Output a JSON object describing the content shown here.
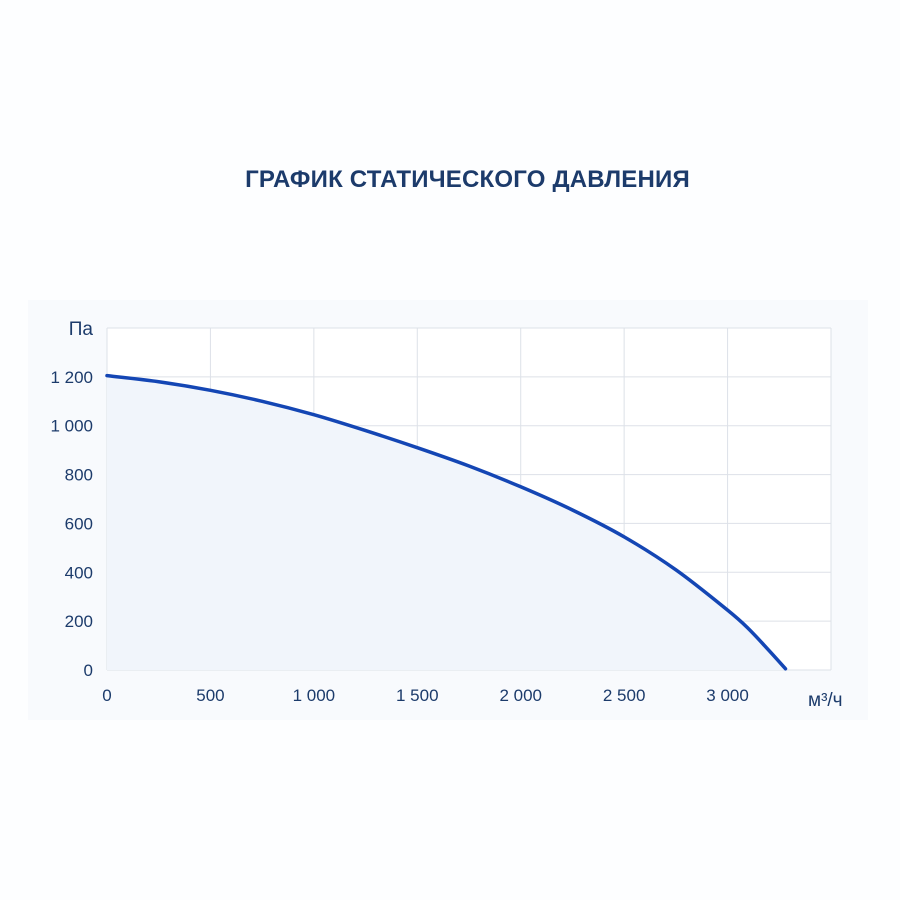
{
  "chart_data": {
    "type": "area",
    "title": "ГРАФИК СТАТИЧЕСКОГО ДАВЛЕНИЯ",
    "ylabel": "Па",
    "xlabel": "м³/ч",
    "xlim": [
      0,
      3500
    ],
    "ylim": [
      0,
      1400
    ],
    "x_ticks": [
      0,
      500,
      1000,
      1500,
      2000,
      2500,
      3000
    ],
    "x_tick_labels": [
      "0",
      "500",
      "1 000",
      "1 500",
      "2 000",
      "2 500",
      "3 000"
    ],
    "y_ticks": [
      0,
      200,
      400,
      600,
      800,
      1000,
      1200
    ],
    "y_tick_labels": [
      "0",
      "200",
      "400",
      "600",
      "800",
      "1 000",
      "1 200"
    ],
    "grid": true,
    "series": [
      {
        "x": [
          0,
          250,
          500,
          750,
          1000,
          1250,
          1500,
          1750,
          2000,
          2250,
          2500,
          2750,
          3000,
          3100,
          3200,
          3280
        ],
        "y": [
          1205,
          1180,
          1145,
          1100,
          1045,
          980,
          910,
          835,
          750,
          655,
          545,
          410,
          245,
          170,
          80,
          5
        ]
      }
    ],
    "colors": {
      "line": "#1446b4",
      "fill": "#f1f5fb",
      "plot_bg": "#ffffff",
      "grid": "#dde1e8",
      "text": "#1c3b6b"
    }
  }
}
